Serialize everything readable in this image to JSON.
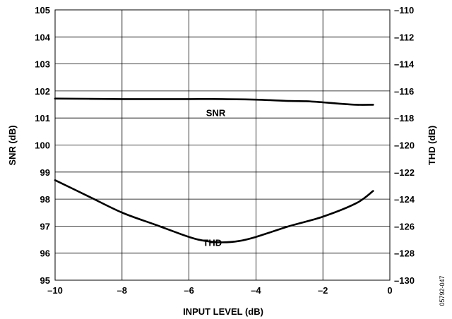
{
  "chart_data": {
    "type": "line",
    "xlabel": "INPUT LEVEL (dB)",
    "ylabel_left": "SNR (dB)",
    "ylabel_right": "THD (dB)",
    "xlim": [
      -10,
      0
    ],
    "xticks": [
      -10,
      -8,
      -6,
      -4,
      -2,
      0
    ],
    "xtick_labels": [
      "–10",
      "–8",
      "–6",
      "–4",
      "–2",
      "0"
    ],
    "ylim_left": [
      95,
      105
    ],
    "yticks_left": [
      95,
      96,
      97,
      98,
      99,
      100,
      101,
      102,
      103,
      104,
      105
    ],
    "ytick_labels_left": [
      "95",
      "96",
      "97",
      "98",
      "99",
      "100",
      "101",
      "102",
      "103",
      "104",
      "105"
    ],
    "ylim_right": [
      -130,
      -110
    ],
    "yticks_right": [
      -130,
      -128,
      -126,
      -124,
      -122,
      -120,
      -118,
      -116,
      -114,
      -112,
      -110
    ],
    "ytick_labels_right": [
      "–130",
      "–128",
      "–126",
      "–124",
      "–122",
      "–120",
      "–118",
      "–116",
      "–114",
      "–112",
      "–110"
    ],
    "grid": true,
    "series": [
      {
        "name": "SNR",
        "axis": "left",
        "x": [
          -10,
          -9,
          -8,
          -7,
          -6,
          -5,
          -4,
          -3,
          -2.5,
          -2,
          -1.5,
          -1,
          -0.5
        ],
        "y": [
          101.72,
          101.71,
          101.7,
          101.7,
          101.7,
          101.7,
          101.68,
          101.63,
          101.62,
          101.58,
          101.53,
          101.49,
          101.49
        ]
      },
      {
        "name": "THD",
        "axis": "right",
        "x": [
          -10,
          -9,
          -8,
          -7,
          -6,
          -5.5,
          -5,
          -4.5,
          -4,
          -3,
          -2,
          -1,
          -0.5
        ],
        "y": [
          -122.6,
          -123.8,
          -125.0,
          -125.9,
          -126.8,
          -127.1,
          -127.2,
          -127.1,
          -126.8,
          -126.0,
          -125.3,
          -124.3,
          -123.4
        ]
      }
    ],
    "annotations": [
      {
        "text": "SNR",
        "x": -5.2,
        "y": 101.2,
        "axis": "left"
      },
      {
        "text": "THD",
        "x": -5.3,
        "y": 96.4,
        "axis": "left"
      }
    ]
  },
  "figure_code": "05792-047"
}
